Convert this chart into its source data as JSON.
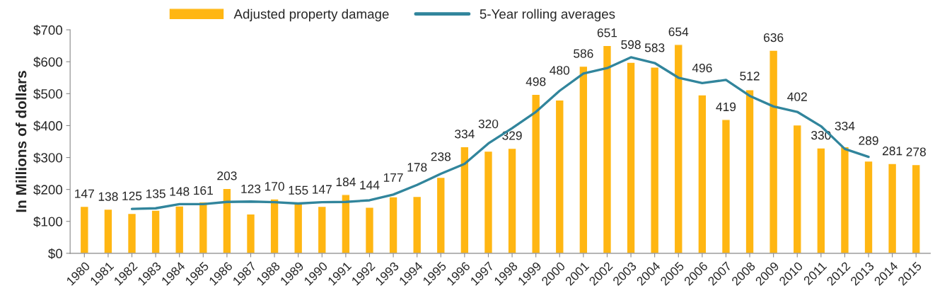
{
  "chart_data": {
    "type": "bar",
    "ylabel": "In Millions of dollars",
    "categories": [
      "1980",
      "1981",
      "1982",
      "1983",
      "1984",
      "1985",
      "1986",
      "1987",
      "1988",
      "1989",
      "1990",
      "1991",
      "1992",
      "1993",
      "1994",
      "1995",
      "1996",
      "1997",
      "1998",
      "1999",
      "2000",
      "2001",
      "2002",
      "2003",
      "2004",
      "2005",
      "2006",
      "2007",
      "2008",
      "2009",
      "2010",
      "2011",
      "2012",
      "2013",
      "2014",
      "2015"
    ],
    "series": [
      {
        "name": "Adjusted property damage",
        "color": "#ffb612",
        "data_labels": true,
        "values": [
          147,
          138,
          125,
          135,
          148,
          161,
          203,
          123,
          170,
          155,
          147,
          184,
          144,
          177,
          178,
          238,
          334,
          320,
          329,
          498,
          480,
          586,
          651,
          598,
          583,
          654,
          496,
          419,
          512,
          636,
          402,
          330,
          334,
          289,
          281,
          278
        ]
      },
      {
        "name": "5-Year rolling averages",
        "type": "line",
        "color": "#31859c",
        "values": [
          null,
          null,
          139,
          141,
          154,
          154,
          161,
          162,
          160,
          156,
          160,
          161,
          166,
          184,
          214,
          249,
          280,
          344,
          392,
          443,
          509,
          563,
          580,
          614,
          596,
          550,
          533,
          543,
          493,
          460,
          443,
          398,
          327,
          302,
          null,
          null
        ]
      }
    ],
    "ylim": [
      0,
      700
    ],
    "yticks": [
      {
        "value": 0,
        "label": "$0"
      },
      {
        "value": 100,
        "label": "$100"
      },
      {
        "value": 200,
        "label": "$200"
      },
      {
        "value": 300,
        "label": "$300"
      },
      {
        "value": 400,
        "label": "$400"
      },
      {
        "value": 500,
        "label": "$500"
      },
      {
        "value": 600,
        "label": "$600"
      },
      {
        "value": 700,
        "label": "$700"
      }
    ],
    "grid": false,
    "legend": "top",
    "marker": "none",
    "line_style": "solid"
  }
}
